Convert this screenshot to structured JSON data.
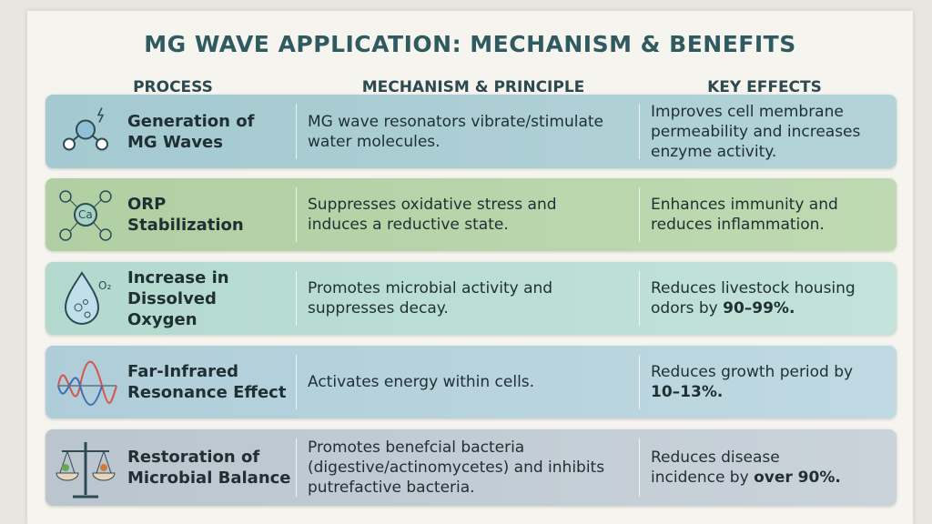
{
  "title": "MG WAVE APPLICATION: MECHANISM & BENEFITS",
  "headers": [
    "PROCESS",
    "MECHANISM & PRINCIPLE",
    "KEY EFFECTS"
  ],
  "rows": [
    {
      "process": [
        "Generation of",
        "MG Waves"
      ],
      "mechanism": [
        "MG wave resonators vibrate/stimulate",
        "water molecules."
      ],
      "effect": [
        "Improves cell membrane",
        "permeability and increases",
        "enzyme activity."
      ],
      "effect_bold": null,
      "icon_label": null
    },
    {
      "process": [
        "ORP",
        "Stabilization"
      ],
      "mechanism": [
        "Suppresses oxidative stress and",
        "induces a reductive state."
      ],
      "effect": [
        "Enhances immunity and",
        "reduces inflammation."
      ],
      "effect_bold": null,
      "icon_label": "Ca"
    },
    {
      "process": [
        "Increase in",
        "Dissolved",
        "Oxygen"
      ],
      "mechanism": [
        "Promotes microbial activity and",
        "suppresses decay."
      ],
      "effect": [
        "Reduces livestock housing",
        "odors by "
      ],
      "effect_bold": "90–99%.",
      "icon_label": "O₂"
    },
    {
      "process": [
        "Far-Infrared",
        "Resonance Effect"
      ],
      "mechanism": [
        "Activates energy within cells."
      ],
      "effect": [
        "Reduces growth period by",
        ""
      ],
      "effect_bold": "10–13%.",
      "icon_label": null
    },
    {
      "process": [
        "Restoration of",
        "Microbial Balance"
      ],
      "mechanism": [
        "Promotes benefcial bacteria",
        "(digestive/actinomycetes) and inhibits",
        "putrefactive bacteria."
      ],
      "effect": [
        "Reduces disease",
        "incidence by "
      ],
      "effect_bold": "over 90%.",
      "icon_label": null
    }
  ]
}
